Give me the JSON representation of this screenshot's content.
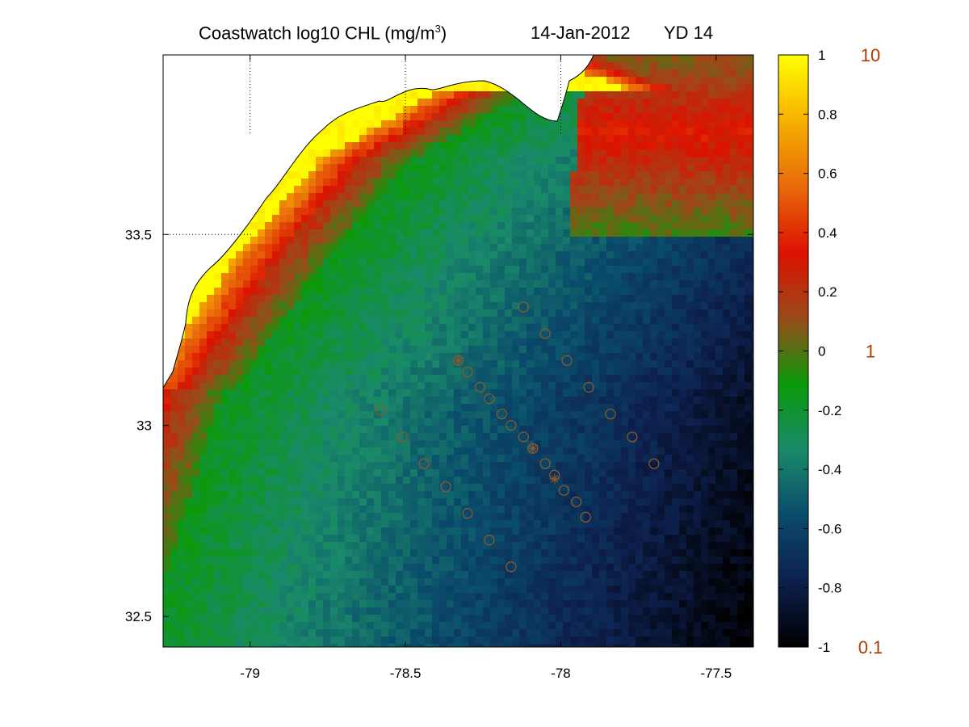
{
  "title": {
    "product": "Coastwatch  log10  CHL (mg/m",
    "unit_exponent": "3",
    "product_close": ")",
    "date": "14-Jan-2012",
    "yearday": "YD 14"
  },
  "map": {
    "x_ticks": [
      "-79",
      "-78.5",
      "-78",
      "-77.5"
    ],
    "x_tick_values": [
      -79,
      -78.5,
      -78,
      -77.5
    ],
    "y_ticks": [
      "33.5",
      "33",
      "32.5"
    ],
    "y_tick_values": [
      33.5,
      33,
      32.5
    ],
    "lon_range": [
      -79.28,
      -77.38
    ],
    "lat_range": [
      32.42,
      33.97
    ],
    "grid": "dotted lines at lon -79, -78.5, -78 and lat 33.5",
    "stations": [
      [
        -78.12,
        33.31
      ],
      [
        -78.05,
        33.24
      ],
      [
        -77.98,
        33.17
      ],
      [
        -77.91,
        33.1
      ],
      [
        -77.84,
        33.03
      ],
      [
        -77.77,
        32.97
      ],
      [
        -77.7,
        32.9
      ],
      [
        -78.33,
        33.17
      ],
      [
        -78.3,
        33.14
      ],
      [
        -78.26,
        33.1
      ],
      [
        -78.23,
        33.07
      ],
      [
        -78.19,
        33.03
      ],
      [
        -78.16,
        33.0
      ],
      [
        -78.12,
        32.97
      ],
      [
        -78.09,
        32.94
      ],
      [
        -78.05,
        32.9
      ],
      [
        -78.02,
        32.87
      ],
      [
        -77.99,
        32.83
      ],
      [
        -77.95,
        32.8
      ],
      [
        -77.92,
        32.76
      ],
      [
        -78.58,
        33.04
      ],
      [
        -78.51,
        32.97
      ],
      [
        -78.44,
        32.9
      ],
      [
        -78.37,
        32.84
      ],
      [
        -78.3,
        32.77
      ],
      [
        -78.23,
        32.7
      ],
      [
        -78.16,
        32.63
      ]
    ],
    "star_stations": [
      [
        -78.33,
        33.17
      ],
      [
        -78.09,
        32.94
      ],
      [
        -78.02,
        32.86
      ]
    ],
    "station_color": "#8a5a2a",
    "land_color": "#ffffff",
    "coast_color": "#000000"
  },
  "colorbar": {
    "ticks": [
      "1",
      "0.8",
      "0.6",
      "0.4",
      "0.2",
      "0",
      "-0.2",
      "-0.4",
      "-0.6",
      "-0.8",
      "-1"
    ],
    "tick_values": [
      1,
      0.8,
      0.6,
      0.4,
      0.2,
      0,
      -0.2,
      -0.4,
      -0.6,
      -0.8,
      -1
    ],
    "right_labels": [
      "10",
      "1",
      "0.1"
    ],
    "right_label_values": [
      1,
      0,
      -1
    ],
    "colormap": [
      "#000000",
      "#0d1f4d",
      "#0a4b6b",
      "#1a8a6a",
      "#0a9a0a",
      "#9a4a1a",
      "#dd1100",
      "#e86a0a",
      "#f7b000",
      "#ffff00"
    ],
    "label_color": "#b23a00"
  }
}
